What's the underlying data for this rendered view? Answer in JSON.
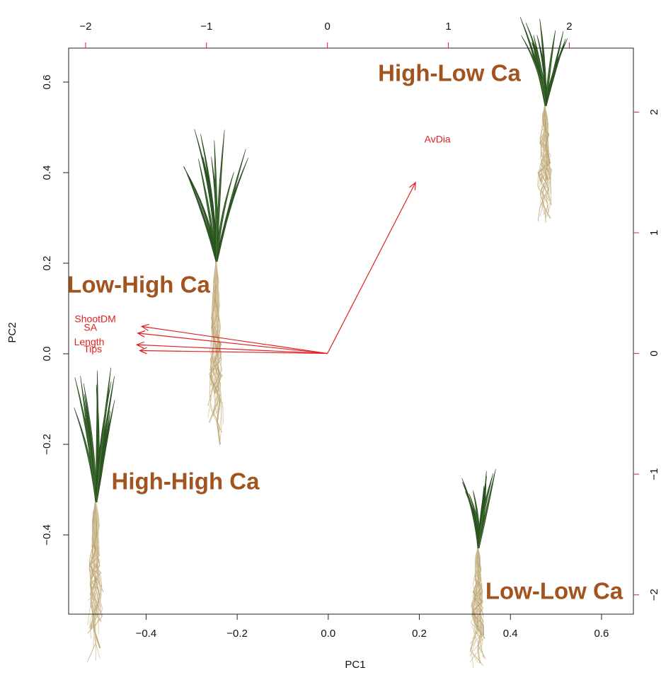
{
  "chart_data": {
    "type": "biplot",
    "x_label": "PC1",
    "y_label": "PC2",
    "xlim": [
      -0.57,
      0.67
    ],
    "ylim": [
      -0.575,
      0.675
    ],
    "xticks": [
      {
        "value": -0.4,
        "label": "−0.4"
      },
      {
        "value": -0.2,
        "label": "−0.2"
      },
      {
        "value": 0,
        "label": "0.0"
      },
      0.2,
      0.4,
      0.6
    ],
    "yticks": [
      {
        "value": -0.4,
        "label": "−0.4"
      },
      {
        "value": -0.2,
        "label": "−0.2"
      },
      {
        "value": 0,
        "label": "0.0"
      },
      0.2,
      0.4,
      0.6
    ],
    "x2lim": [
      -2.14,
      2.53
    ],
    "x2ticks": [
      {
        "value": -2,
        "label": "−2"
      },
      {
        "value": -1,
        "label": "−1"
      },
      0,
      1,
      2
    ],
    "y2lim": [
      -2.16,
      2.53
    ],
    "y2ticks": [
      {
        "value": -2,
        "label": "−2"
      },
      {
        "value": -1,
        "label": "−1"
      },
      0,
      1,
      2
    ],
    "loading_color": "#e02020",
    "loadings": [
      {
        "name": "AvDia",
        "x": 0.91,
        "y": 1.77
      },
      {
        "name": "ShootDM",
        "x": -1.92,
        "y": 0.28
      },
      {
        "name": "SA",
        "x": -1.96,
        "y": 0.21
      },
      {
        "name": "Length",
        "x": -1.97,
        "y": 0.09
      },
      {
        "name": "Tips",
        "x": -1.94,
        "y": 0.03
      }
    ],
    "annotations": [
      "High-Low Ca",
      "Low-High Ca",
      "High-High Ca",
      "Low-Low Ca"
    ]
  }
}
